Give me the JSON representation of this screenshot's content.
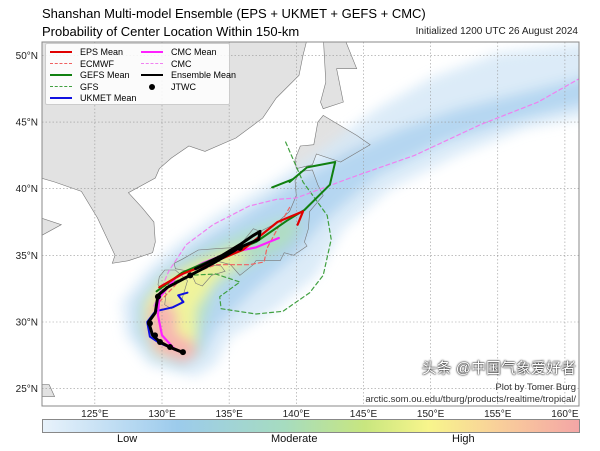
{
  "header": {
    "title_line1": "Shanshan Multi-model Ensemble (EPS + UKMET + GEFS + CMC)",
    "title_line2": "Probability of Center Location Within 150-km",
    "initialized": "Initialized 1200 UTC 26 August 2024"
  },
  "legend": [
    {
      "label": "EPS Mean",
      "color": "#e00000",
      "style": "solid"
    },
    {
      "label": "ECMWF",
      "color": "#f06060",
      "style": "dashed"
    },
    {
      "label": "GEFS Mean",
      "color": "#108010",
      "style": "solid"
    },
    {
      "label": "GFS",
      "color": "#40a040",
      "style": "dashed"
    },
    {
      "label": "UKMET Mean",
      "color": "#1010e0",
      "style": "solid"
    },
    {
      "label": "CMC Mean",
      "color": "#ff20ff",
      "style": "solid"
    },
    {
      "label": "CMC",
      "color": "#f080f0",
      "style": "dashed"
    },
    {
      "label": "Ensemble Mean",
      "color": "#000000",
      "style": "solid"
    },
    {
      "label": "JTWC",
      "color": "#000000",
      "style": "dot"
    }
  ],
  "credit": {
    "line1": "Plot by Tomer Burg",
    "line2": "arctic.som.ou.edu/tburg/products/realtime/tropical/"
  },
  "colorbar": {
    "low": "Low",
    "moderate": "Moderate",
    "high": "High"
  },
  "watermark": "头条 @中国气象爱好者",
  "chart_data": {
    "type": "map",
    "lon_ticks": [
      "125°E",
      "130°E",
      "135°E",
      "140°E",
      "145°E",
      "150°E",
      "155°E",
      "160°E"
    ],
    "lat_ticks": [
      "25°N",
      "30°N",
      "35°N",
      "40°N",
      "45°N",
      "50°N"
    ],
    "lon_range": [
      121,
      161
    ],
    "lat_range": [
      24.5,
      51
    ],
    "grid": true,
    "tracks": {
      "ensemble_mean": [
        [
          131.6,
          27.7
        ],
        [
          130.6,
          28.1
        ],
        [
          129.85,
          28.5
        ],
        [
          129.3,
          29.0
        ],
        [
          129.0,
          30.0
        ],
        [
          129.5,
          30.7
        ],
        [
          129.7,
          32.0
        ],
        [
          130.4,
          32.6
        ],
        [
          132.1,
          33.5
        ],
        [
          133.8,
          34.4
        ],
        [
          135.8,
          35.6
        ],
        [
          137.2,
          36.2
        ],
        [
          137.3,
          36.8
        ],
        [
          136.8,
          36.5
        ],
        [
          135.8,
          35.8
        ],
        [
          134.5,
          35.0
        ],
        [
          132.5,
          34.0
        ]
      ],
      "eps_mean": [
        [
          129.8,
          32.6
        ],
        [
          131.5,
          33.6
        ],
        [
          133.6,
          34.4
        ],
        [
          136.0,
          35.4
        ],
        [
          138.6,
          37.5
        ],
        [
          140.5,
          38.3
        ],
        [
          140.1,
          37.3
        ]
      ],
      "gefs_mean": [
        [
          129.6,
          32.3
        ],
        [
          131.5,
          33.7
        ],
        [
          134.5,
          35.0
        ],
        [
          137.0,
          36.0
        ],
        [
          139.3,
          37.6
        ],
        [
          140.6,
          38.4
        ],
        [
          142.5,
          40.3
        ],
        [
          142.9,
          42.0
        ],
        [
          140.8,
          41.6
        ],
        [
          139.5,
          40.5
        ],
        [
          139.7,
          40.7
        ],
        [
          138.2,
          40.1
        ]
      ],
      "cmc_mean": [
        [
          131.0,
          27.9
        ],
        [
          130.0,
          29.0
        ],
        [
          129.7,
          30.5
        ],
        [
          129.8,
          31.8
        ],
        [
          131.0,
          33.3
        ],
        [
          133.0,
          34.4
        ],
        [
          135.0,
          35.2
        ],
        [
          137.0,
          35.6
        ],
        [
          138.7,
          36.3
        ]
      ],
      "ukmet_mean": [
        [
          131.9,
          32.2
        ],
        [
          131.2,
          32.0
        ],
        [
          131.6,
          31.5
        ],
        [
          130.8,
          31.1
        ],
        [
          129.5,
          30.8
        ],
        [
          128.9,
          30.0
        ],
        [
          129.1,
          28.9
        ],
        [
          129.85,
          28.4
        ],
        [
          131.6,
          27.7
        ]
      ],
      "gfs": [
        [
          139.2,
          43.5
        ],
        [
          140.5,
          40.5
        ],
        [
          142.3,
          38.0
        ],
        [
          142.6,
          36.2
        ],
        [
          142.0,
          33.5
        ],
        [
          141.0,
          32.2
        ],
        [
          139.0,
          30.8
        ],
        [
          137.0,
          30.6
        ],
        [
          134.4,
          31.0
        ],
        [
          134.3,
          31.9
        ],
        [
          135.8,
          33.0
        ],
        [
          134.0,
          33.6
        ],
        [
          132.0,
          33.5
        ],
        [
          130.0,
          32.6
        ]
      ],
      "ecmwf": [
        [
          129.8,
          31.5
        ],
        [
          131.5,
          33.3
        ],
        [
          134.0,
          34.3
        ],
        [
          136.5,
          34.3
        ],
        [
          137.6,
          34.5
        ],
        [
          137.8,
          35.5
        ],
        [
          138.6,
          37.0
        ],
        [
          139.5,
          38.6
        ]
      ],
      "cmc": [
        [
          129.4,
          31.2
        ],
        [
          130.5,
          33.8
        ],
        [
          131.8,
          35.8
        ],
        [
          133.8,
          37.3
        ],
        [
          136.5,
          38.7
        ],
        [
          138.5,
          39.2
        ],
        [
          140.0,
          39.3
        ],
        [
          144.0,
          40.8
        ],
        [
          148.8,
          42.5
        ],
        [
          153.7,
          44.8
        ],
        [
          158.0,
          46.5
        ],
        [
          161.5,
          48.5
        ]
      ]
    },
    "jtwc_points": [
      [
        131.56,
        27.74
      ],
      [
        130.6,
        28.12
      ],
      [
        129.85,
        28.5
      ],
      [
        129.48,
        29.0
      ],
      [
        129.1,
        29.9
      ],
      [
        129.7,
        31.9
      ],
      [
        132.1,
        33.5
      ],
      [
        135.8,
        35.56
      ]
    ]
  }
}
